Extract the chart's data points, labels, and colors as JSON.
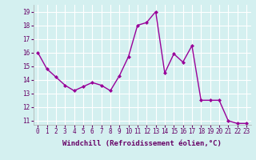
{
  "x": [
    0,
    1,
    2,
    3,
    4,
    5,
    6,
    7,
    8,
    9,
    10,
    11,
    12,
    13,
    14,
    15,
    16,
    17,
    18,
    19,
    20,
    21,
    22,
    23
  ],
  "y": [
    16.0,
    14.8,
    14.2,
    13.6,
    13.2,
    13.5,
    13.8,
    13.6,
    13.2,
    14.3,
    15.7,
    18.0,
    18.2,
    19.0,
    14.5,
    15.9,
    15.3,
    16.5,
    12.5,
    12.5,
    12.5,
    11.0,
    10.8,
    10.8
  ],
  "line_color": "#990099",
  "marker": "D",
  "marker_size": 2,
  "linewidth": 1.0,
  "xlabel": "Windchill (Refroidissement éolien,°C)",
  "xlabel_fontsize": 6.5,
  "bg_color": "#d4f0f0",
  "grid_color": "#aadddd",
  "ylim": [
    10.7,
    19.5
  ],
  "xlim": [
    -0.5,
    23.5
  ],
  "yticks": [
    11,
    12,
    13,
    14,
    15,
    16,
    17,
    18,
    19
  ],
  "xticks": [
    0,
    1,
    2,
    3,
    4,
    5,
    6,
    7,
    8,
    9,
    10,
    11,
    12,
    13,
    14,
    15,
    16,
    17,
    18,
    19,
    20,
    21,
    22,
    23
  ],
  "tick_fontsize": 5.5,
  "xlabel_fontweight": "bold"
}
